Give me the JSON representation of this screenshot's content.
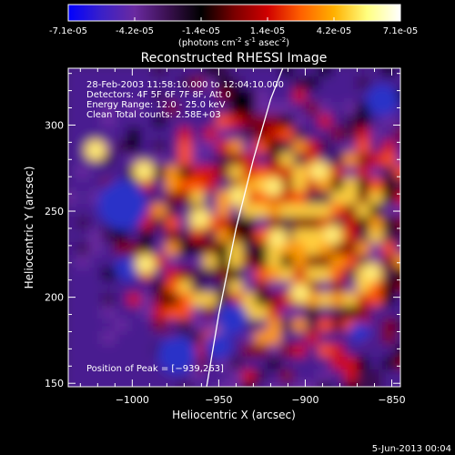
{
  "colorbar": {
    "tick_labels": [
      "-7.1e-05",
      "-4.2e-05",
      "-1.4e-05",
      "1.4e-05",
      "4.2e-05",
      "7.1e-05"
    ],
    "units_label": "(photons cm",
    "units_exp1": "-2",
    "units_mid": " s",
    "units_exp2": "-1",
    "units_mid2": " asec",
    "units_exp3": "-2",
    "units_end": ")",
    "stops": [
      "#0000ff",
      "#3a20c8",
      "#6a2aa0",
      "#3a1050",
      "#000000",
      "#7a0000",
      "#d00000",
      "#ff6000",
      "#ffb000",
      "#ffff80",
      "#ffffff"
    ]
  },
  "chart_data": {
    "type": "heatmap",
    "title": "Reconstructed RHESSI Image",
    "xlabel": "Heliocentric X (arcsec)",
    "ylabel": "Heliocentric Y (arcsec)",
    "xlim": [
      -1037,
      -845
    ],
    "ylim": [
      148,
      333
    ],
    "x_ticks": [
      -1000,
      -950,
      -900,
      -850
    ],
    "y_ticks": [
      150,
      200,
      250,
      300
    ],
    "x_tick_labels": [
      "−1000",
      "−950",
      "−900",
      "−850"
    ],
    "y_tick_labels": [
      "150",
      "200",
      "250",
      "300"
    ],
    "vmin": -7.1e-05,
    "vmax": 7.1e-05,
    "info_lines": [
      "28-Feb-2003 11:58:10.000 to 12:04:10.000",
      "Detectors: 4F 5F 6F 7F 8F, Att 0",
      "Energy Range: 12.0 - 25.0 keV",
      "Clean     Total counts: 2.58E+03"
    ],
    "peak_label": "Position of Peak = [−939,263]",
    "peak_position": [
      -939,
      263
    ],
    "limb_curve": [
      [
        -957,
        148
      ],
      [
        -950,
        190
      ],
      [
        -940,
        240
      ],
      [
        -930,
        280
      ],
      [
        -920,
        315
      ],
      [
        -913,
        333
      ]
    ]
  },
  "footer": {
    "timestamp": "5-Jun-2013 00:04"
  }
}
